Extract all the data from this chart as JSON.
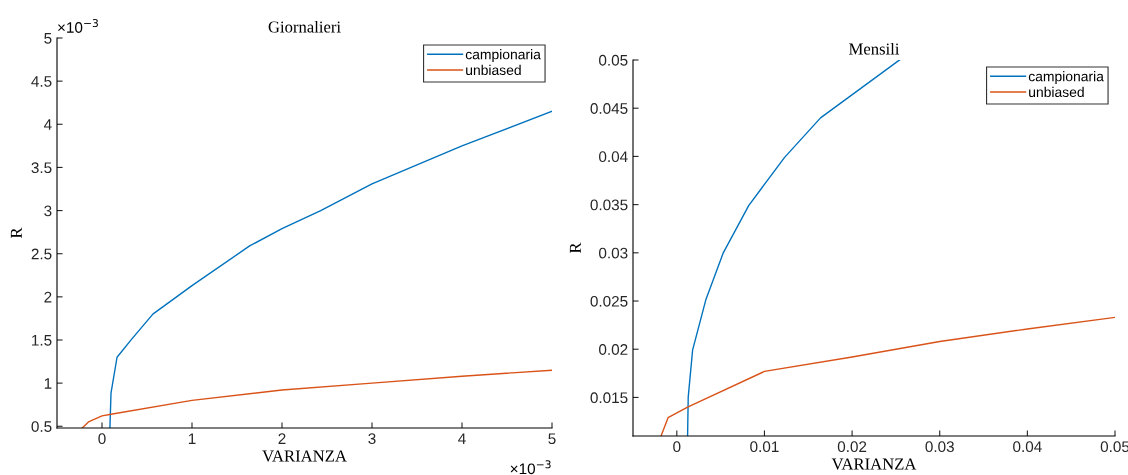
{
  "chart_data": [
    {
      "type": "line",
      "title": "Giornalieri",
      "xlabel": "VARIANZA",
      "ylabel": "R",
      "annotations": [
        "×10$^{−3}$",
        "×10$^{−3}$"
      ],
      "xlim": [
        -0.5,
        5
      ],
      "xticks": [
        0,
        1,
        2,
        3,
        4,
        5
      ],
      "ylim": [
        0.48,
        5
      ],
      "yticks": [
        0.5,
        1,
        1.5,
        2,
        2.5,
        3,
        3.5,
        4,
        4.5,
        5
      ],
      "legend": "top right",
      "grid": false,
      "series": [
        {
          "name": "campionaria",
          "color": "#0072bd",
          "x": [
            0.088,
            0.1,
            0.167,
            0.33,
            0.565,
            1.0,
            1.64,
            2.0,
            2.43,
            3.0,
            4.0,
            5.0
          ],
          "values": [
            0.48,
            0.885,
            1.3,
            1.51,
            1.8,
            2.13,
            2.59,
            2.79,
            3.0,
            3.31,
            3.75,
            4.15
          ]
        },
        {
          "name": "unbiased",
          "color": "#d95319",
          "x": [
            -0.22,
            -0.15,
            0,
            0.1,
            1,
            2,
            3,
            4,
            5
          ],
          "values": [
            0.48,
            0.55,
            0.62,
            0.64,
            0.8,
            0.92,
            1.0,
            1.08,
            1.15
          ]
        }
      ]
    },
    {
      "type": "line",
      "title": "Mensili",
      "xlabel": "VARIANZA",
      "ylabel": "R",
      "xlim": [
        -0.005,
        0.05
      ],
      "xticks": [
        0,
        0.01,
        0.02,
        0.03,
        0.04,
        0.05
      ],
      "ylim": [
        0.011,
        0.05
      ],
      "yticks": [
        0.015,
        0.02,
        0.025,
        0.03,
        0.035,
        0.04,
        0.045,
        0.05
      ],
      "legend": "top right",
      "grid": false,
      "series": [
        {
          "name": "campionaria",
          "color": "#0072bd",
          "x": [
            0.00123,
            0.0013,
            0.0018,
            0.0033,
            0.0053,
            0.0082,
            0.0123,
            0.0164,
            0.0254
          ],
          "values": [
            0.011,
            0.015,
            0.0199,
            0.0251,
            0.03,
            0.0349,
            0.0399,
            0.044,
            0.05
          ]
        },
        {
          "name": "unbiased",
          "color": "#d95319",
          "x": [
            -0.0018,
            -0.001,
            0.00123,
            0.01,
            0.02,
            0.03,
            0.04,
            0.05
          ],
          "values": [
            0.011,
            0.0129,
            0.014,
            0.0177,
            0.0192,
            0.0208,
            0.0221,
            0.0233
          ]
        }
      ]
    }
  ]
}
